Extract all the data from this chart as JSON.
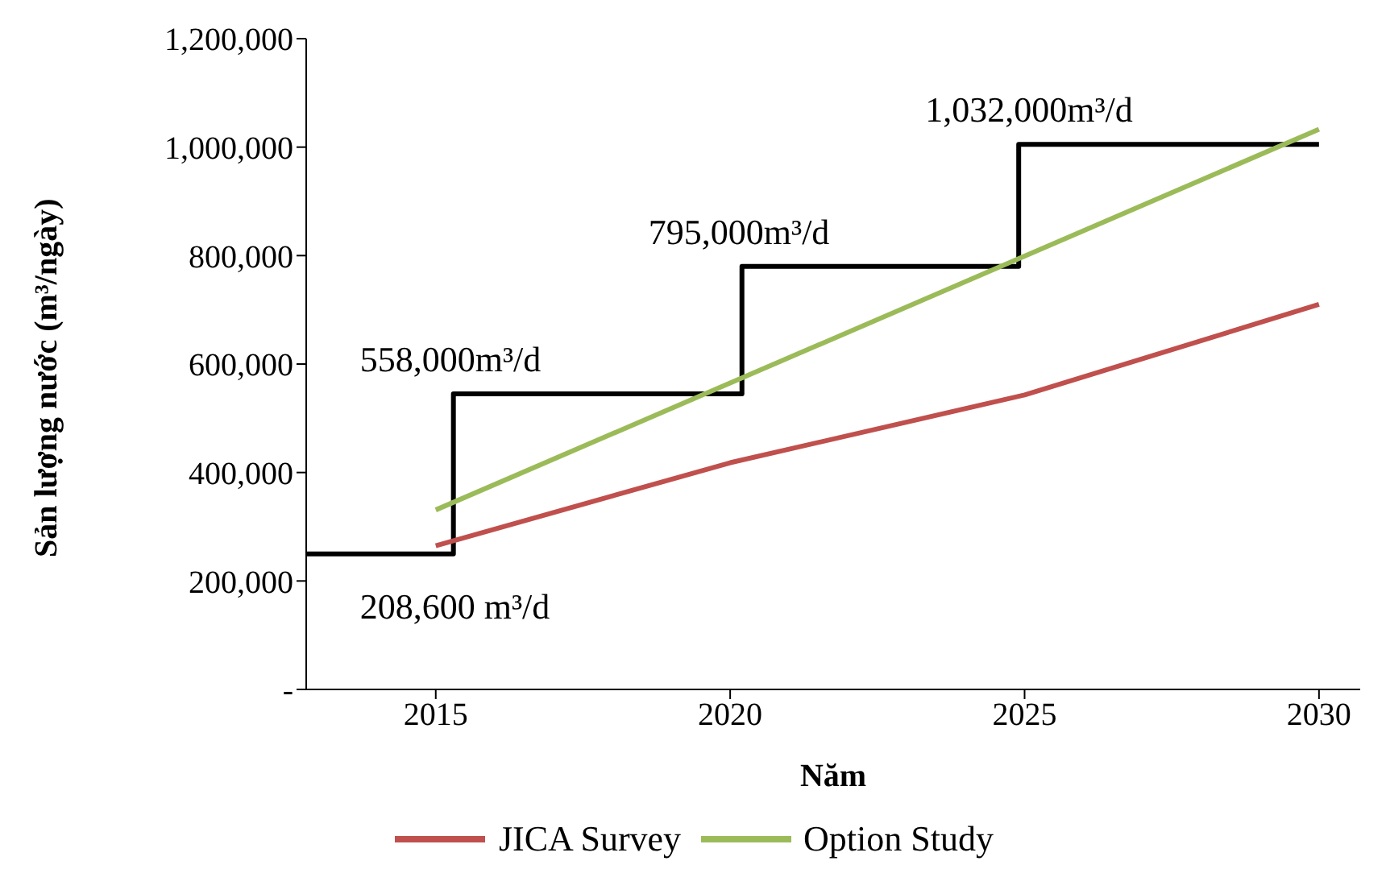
{
  "chart_data": {
    "type": "line",
    "xlabel": "Năm",
    "ylabel": "Sản lượng nước (m³/ngày)",
    "xlim": [
      2012.8,
      2030.7
    ],
    "xticks": [
      2015,
      2020,
      2025,
      2030
    ],
    "ylim": [
      0,
      1200000
    ],
    "yticks": [
      {
        "value": 0,
        "label": "-"
      },
      {
        "value": 200000,
        "label": "200,000"
      },
      {
        "value": 400000,
        "label": "400,000"
      },
      {
        "value": 600000,
        "label": "600,000"
      },
      {
        "value": 800000,
        "label": "800,000"
      },
      {
        "value": 1000000,
        "label": "1,000,000"
      },
      {
        "value": 1200000,
        "label": "1,200,000"
      }
    ],
    "grid": false,
    "legend": "bottom",
    "marker": "none",
    "line_style": "solid",
    "series": [
      {
        "color": "#000000",
        "x": [
          2012.8,
          2015.3,
          2015.3,
          2020.2,
          2020.2,
          2024.9,
          2024.9,
          2030
        ],
        "values": [
          250000,
          250000,
          545000,
          545000,
          780000,
          780000,
          1005000,
          1005000
        ]
      },
      {
        "name": "JICA Survey",
        "color": "#c0504d",
        "x": [
          2015,
          2020,
          2025,
          2030
        ],
        "values": [
          265000,
          418000,
          543000,
          710000
        ]
      },
      {
        "name": "Option Study",
        "color": "#9bbb59",
        "x": [
          2015,
          2020,
          2025,
          2030
        ],
        "values": [
          331000,
          565000,
          799000,
          1033000
        ]
      }
    ],
    "annotations": [
      {
        "text": "208,600 m³/d",
        "x": 2015.3,
        "y": 250000
      },
      {
        "text": "558,000m³/d",
        "x": 2015.3,
        "y": 545000
      },
      {
        "text": "795,000m³/d",
        "x": 2020.2,
        "y": 780000
      },
      {
        "text": "1,032,000m³/d",
        "x": 2024.9,
        "y": 1005000
      }
    ]
  }
}
